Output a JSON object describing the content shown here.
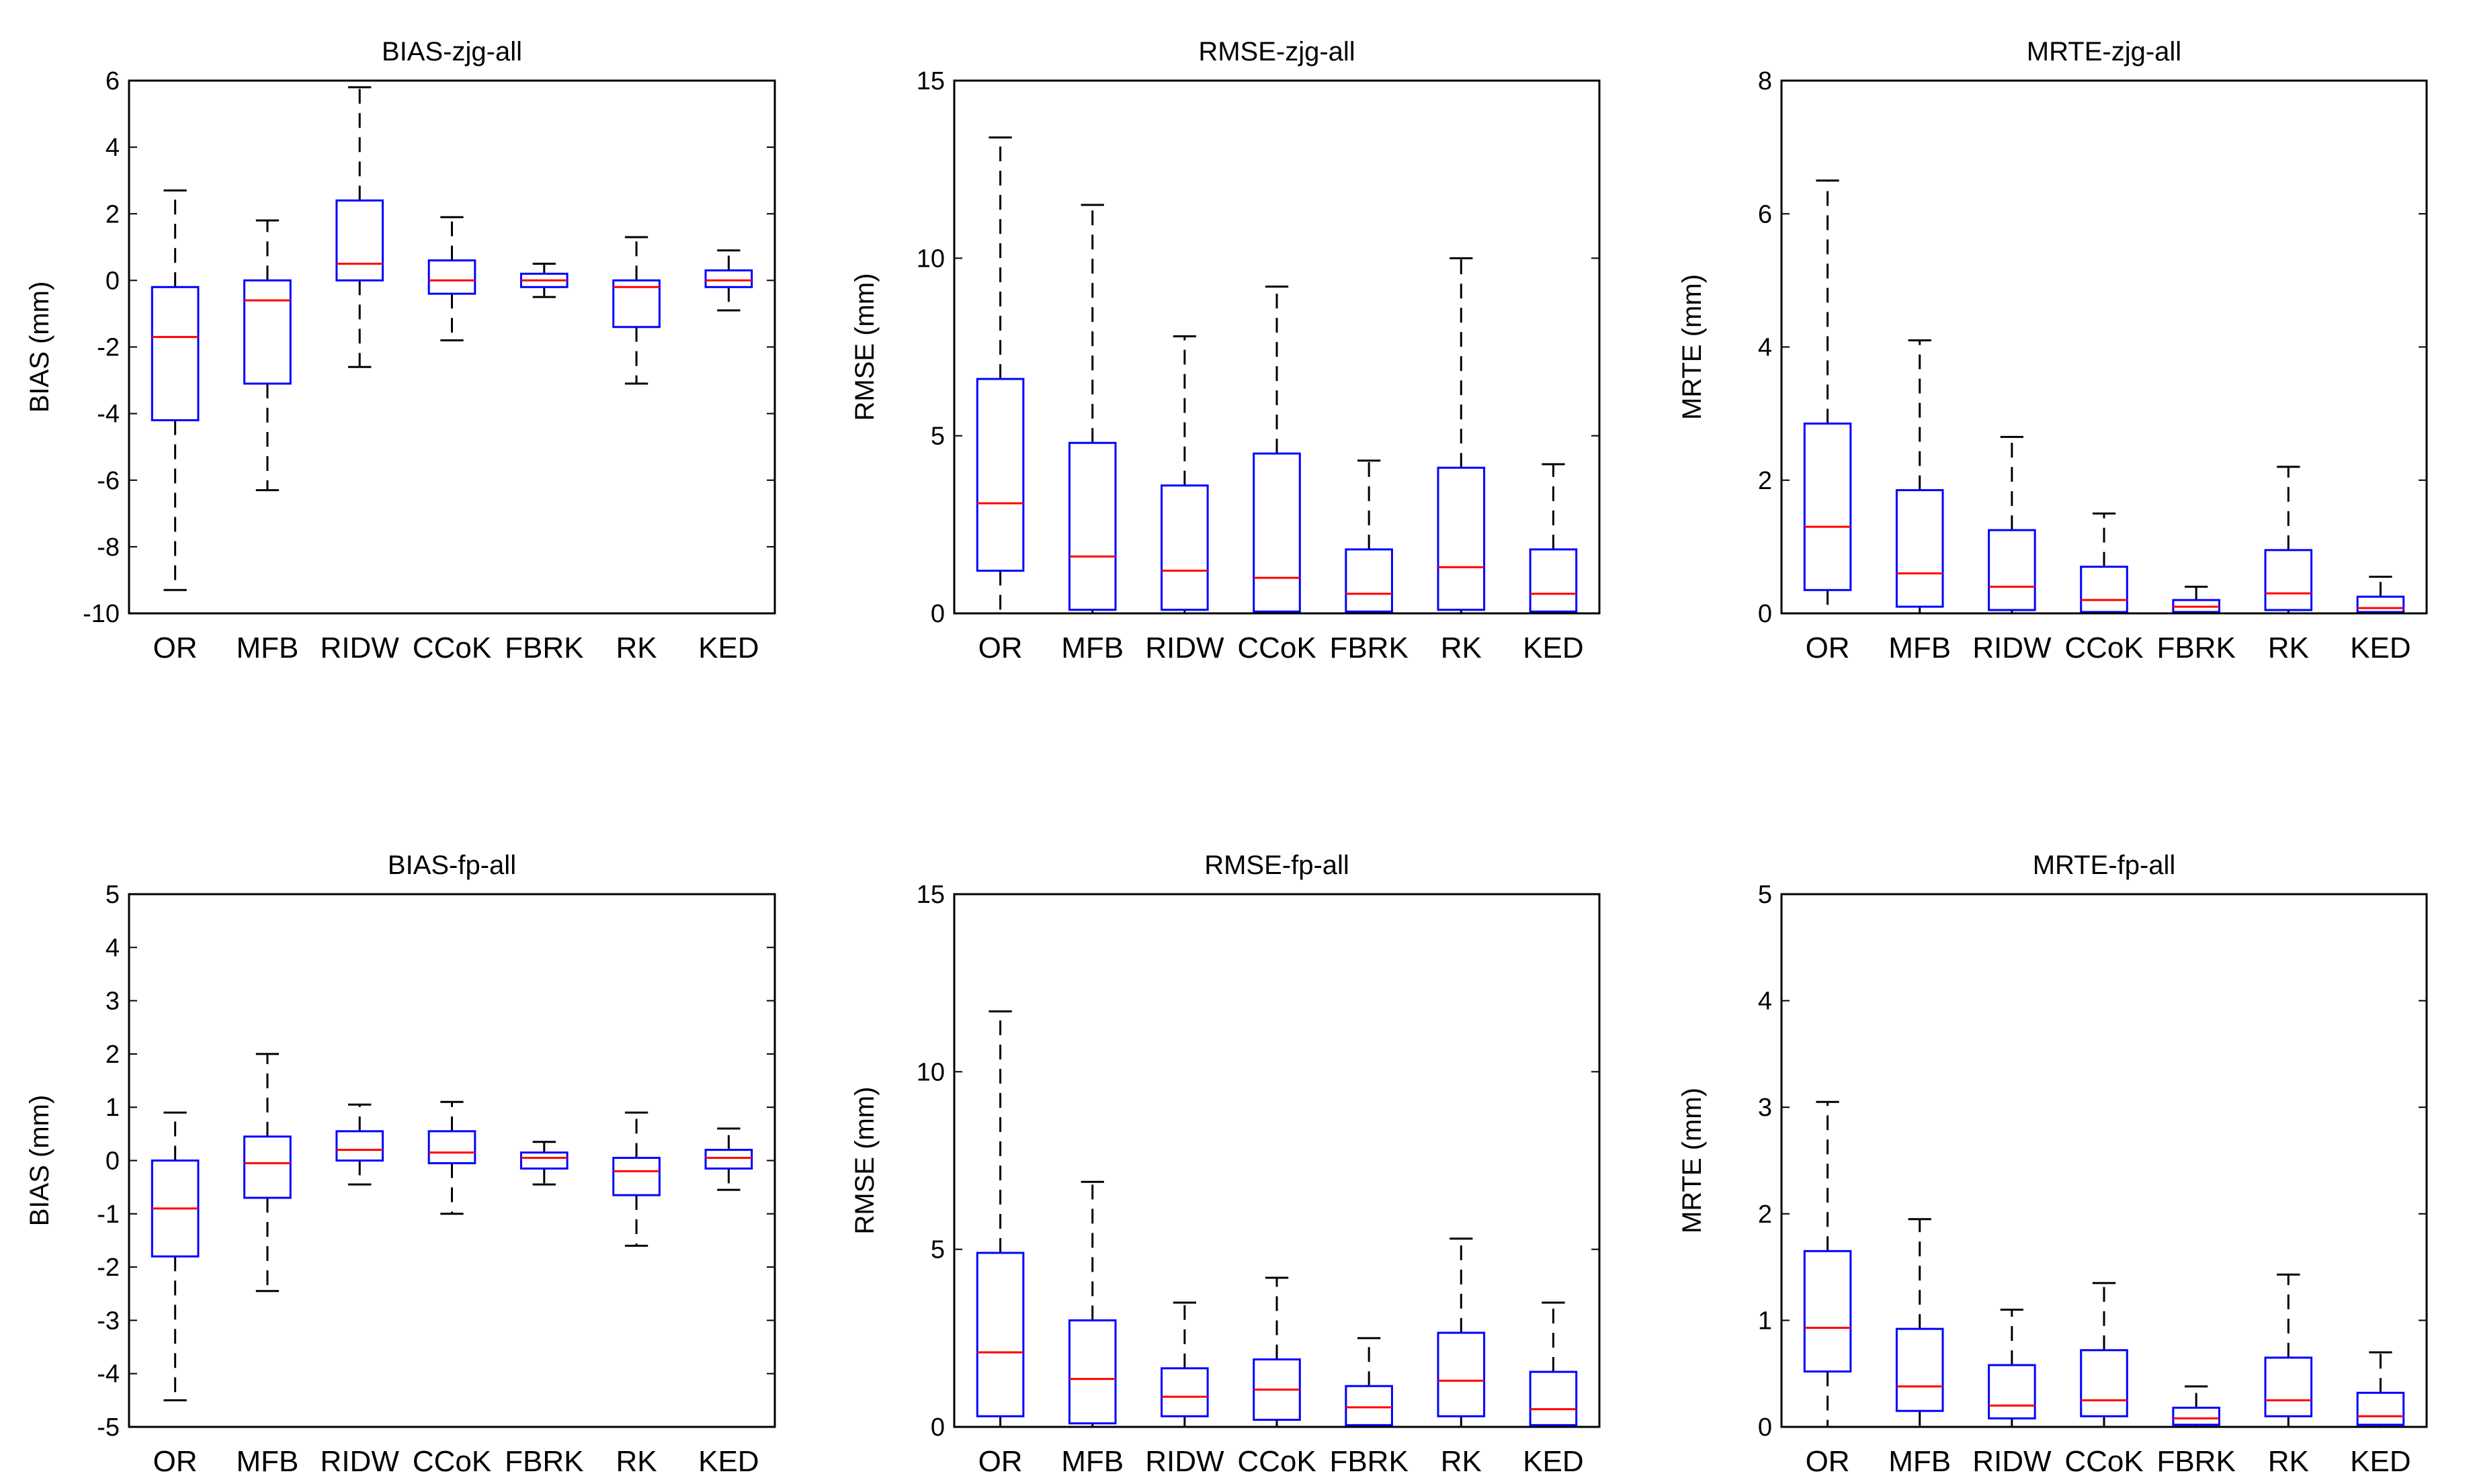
{
  "colors": {
    "box": "#0000ff",
    "median": "#ff0000",
    "whisker": "#000000",
    "frame": "#000000",
    "background": "#ffffff"
  },
  "chart_data": [
    {
      "type": "boxplot",
      "title": "BIAS-zjg-all",
      "xlabel": "",
      "ylabel": "BIAS (mm)",
      "ylim": [
        -10,
        6
      ],
      "yticks": [
        -10,
        -8,
        -6,
        -4,
        -2,
        0,
        2,
        4,
        6
      ],
      "categories": [
        "OR",
        "MFB",
        "RIDW",
        "CCoK",
        "FBRK",
        "RK",
        "KED"
      ],
      "boxes": [
        {
          "whislo": -9.3,
          "q1": -4.2,
          "med": -1.7,
          "q3": -0.2,
          "whishi": 2.7
        },
        {
          "whislo": -6.3,
          "q1": -3.1,
          "med": -0.6,
          "q3": 0.0,
          "whishi": 1.8
        },
        {
          "whislo": -2.6,
          "q1": 0.0,
          "med": 0.5,
          "q3": 2.4,
          "whishi": 5.8
        },
        {
          "whislo": -1.8,
          "q1": -0.4,
          "med": 0.0,
          "q3": 0.6,
          "whishi": 1.9
        },
        {
          "whislo": -0.5,
          "q1": -0.2,
          "med": 0.0,
          "q3": 0.2,
          "whishi": 0.5
        },
        {
          "whislo": -3.1,
          "q1": -1.4,
          "med": -0.2,
          "q3": 0.0,
          "whishi": 1.3
        },
        {
          "whislo": -0.9,
          "q1": -0.2,
          "med": 0.0,
          "q3": 0.3,
          "whishi": 0.9
        }
      ]
    },
    {
      "type": "boxplot",
      "title": "RMSE-zjg-all",
      "xlabel": "",
      "ylabel": "RMSE (mm)",
      "ylim": [
        0,
        15
      ],
      "yticks": [
        0,
        5,
        10,
        15
      ],
      "categories": [
        "OR",
        "MFB",
        "RIDW",
        "CCoK",
        "FBRK",
        "RK",
        "KED"
      ],
      "boxes": [
        {
          "whislo": 0.0,
          "q1": 1.2,
          "med": 3.1,
          "q3": 6.6,
          "whishi": 13.4
        },
        {
          "whislo": 0.0,
          "q1": 0.1,
          "med": 1.6,
          "q3": 4.8,
          "whishi": 11.5
        },
        {
          "whislo": 0.0,
          "q1": 0.1,
          "med": 1.2,
          "q3": 3.6,
          "whishi": 7.8
        },
        {
          "whislo": 0.0,
          "q1": 0.05,
          "med": 1.0,
          "q3": 4.5,
          "whishi": 9.2
        },
        {
          "whislo": 0.0,
          "q1": 0.05,
          "med": 0.55,
          "q3": 1.8,
          "whishi": 4.3
        },
        {
          "whislo": 0.0,
          "q1": 0.1,
          "med": 1.3,
          "q3": 4.1,
          "whishi": 10.0
        },
        {
          "whislo": 0.0,
          "q1": 0.05,
          "med": 0.55,
          "q3": 1.8,
          "whishi": 4.2
        }
      ]
    },
    {
      "type": "boxplot",
      "title": "MRTE-zjg-all",
      "xlabel": "",
      "ylabel": "MRTE (mm)",
      "ylim": [
        0,
        8
      ],
      "yticks": [
        0,
        2,
        4,
        6,
        8
      ],
      "categories": [
        "OR",
        "MFB",
        "RIDW",
        "CCoK",
        "FBRK",
        "RK",
        "KED"
      ],
      "boxes": [
        {
          "whislo": 0.0,
          "q1": 0.35,
          "med": 1.3,
          "q3": 2.85,
          "whishi": 6.5
        },
        {
          "whislo": 0.0,
          "q1": 0.1,
          "med": 0.6,
          "q3": 1.85,
          "whishi": 4.1
        },
        {
          "whislo": 0.0,
          "q1": 0.05,
          "med": 0.4,
          "q3": 1.25,
          "whishi": 2.65
        },
        {
          "whislo": 0.0,
          "q1": 0.02,
          "med": 0.2,
          "q3": 0.7,
          "whishi": 1.5
        },
        {
          "whislo": 0.0,
          "q1": 0.02,
          "med": 0.1,
          "q3": 0.2,
          "whishi": 0.4
        },
        {
          "whislo": 0.0,
          "q1": 0.05,
          "med": 0.3,
          "q3": 0.95,
          "whishi": 2.2
        },
        {
          "whislo": 0.0,
          "q1": 0.02,
          "med": 0.08,
          "q3": 0.25,
          "whishi": 0.55
        }
      ]
    },
    {
      "type": "boxplot",
      "title": "BIAS-fp-all",
      "xlabel": "",
      "ylabel": "BIAS (mm)",
      "ylim": [
        -5,
        5
      ],
      "yticks": [
        -5,
        -4,
        -3,
        -2,
        -1,
        0,
        1,
        2,
        3,
        4,
        5
      ],
      "categories": [
        "OR",
        "MFB",
        "RIDW",
        "CCoK",
        "FBRK",
        "RK",
        "KED"
      ],
      "boxes": [
        {
          "whislo": -4.5,
          "q1": -1.8,
          "med": -0.9,
          "q3": 0.0,
          "whishi": 0.9
        },
        {
          "whislo": -2.45,
          "q1": -0.7,
          "med": -0.05,
          "q3": 0.45,
          "whishi": 2.0
        },
        {
          "whislo": -0.45,
          "q1": 0.0,
          "med": 0.2,
          "q3": 0.55,
          "whishi": 1.05
        },
        {
          "whislo": -1.0,
          "q1": -0.05,
          "med": 0.15,
          "q3": 0.55,
          "whishi": 1.1
        },
        {
          "whislo": -0.45,
          "q1": -0.15,
          "med": 0.05,
          "q3": 0.15,
          "whishi": 0.35
        },
        {
          "whislo": -1.6,
          "q1": -0.65,
          "med": -0.2,
          "q3": 0.05,
          "whishi": 0.9
        },
        {
          "whislo": -0.55,
          "q1": -0.15,
          "med": 0.05,
          "q3": 0.2,
          "whishi": 0.6
        }
      ]
    },
    {
      "type": "boxplot",
      "title": "RMSE-fp-all",
      "xlabel": "",
      "ylabel": "RMSE (mm)",
      "ylim": [
        0,
        15
      ],
      "yticks": [
        0,
        5,
        10,
        15
      ],
      "categories": [
        "OR",
        "MFB",
        "RIDW",
        "CCoK",
        "FBRK",
        "RK",
        "KED"
      ],
      "boxes": [
        {
          "whislo": 0.0,
          "q1": 0.3,
          "med": 2.1,
          "q3": 4.9,
          "whishi": 11.7
        },
        {
          "whislo": 0.0,
          "q1": 0.1,
          "med": 1.35,
          "q3": 3.0,
          "whishi": 6.9
        },
        {
          "whislo": 0.0,
          "q1": 0.3,
          "med": 0.85,
          "q3": 1.65,
          "whishi": 3.5
        },
        {
          "whislo": 0.0,
          "q1": 0.2,
          "med": 1.05,
          "q3": 1.9,
          "whishi": 4.2
        },
        {
          "whislo": 0.0,
          "q1": 0.05,
          "med": 0.55,
          "q3": 1.15,
          "whishi": 2.5
        },
        {
          "whislo": 0.0,
          "q1": 0.3,
          "med": 1.3,
          "q3": 2.65,
          "whishi": 5.3
        },
        {
          "whislo": 0.0,
          "q1": 0.05,
          "med": 0.5,
          "q3": 1.55,
          "whishi": 3.5
        }
      ]
    },
    {
      "type": "boxplot",
      "title": "MRTE-fp-all",
      "xlabel": "",
      "ylabel": "MRTE (mm)",
      "ylim": [
        0,
        5
      ],
      "yticks": [
        0,
        1,
        2,
        3,
        4,
        5
      ],
      "categories": [
        "OR",
        "MFB",
        "RIDW",
        "CCoK",
        "FBRK",
        "RK",
        "KED"
      ],
      "boxes": [
        {
          "whislo": 0.0,
          "q1": 0.52,
          "med": 0.93,
          "q3": 1.65,
          "whishi": 3.05
        },
        {
          "whislo": 0.0,
          "q1": 0.15,
          "med": 0.38,
          "q3": 0.92,
          "whishi": 1.95
        },
        {
          "whislo": 0.0,
          "q1": 0.08,
          "med": 0.2,
          "q3": 0.58,
          "whishi": 1.1
        },
        {
          "whislo": 0.0,
          "q1": 0.1,
          "med": 0.25,
          "q3": 0.72,
          "whishi": 1.35
        },
        {
          "whislo": 0.0,
          "q1": 0.02,
          "med": 0.08,
          "q3": 0.18,
          "whishi": 0.38
        },
        {
          "whislo": 0.0,
          "q1": 0.1,
          "med": 0.25,
          "q3": 0.65,
          "whishi": 1.43
        },
        {
          "whislo": 0.0,
          "q1": 0.02,
          "med": 0.1,
          "q3": 0.32,
          "whishi": 0.7
        }
      ]
    }
  ]
}
